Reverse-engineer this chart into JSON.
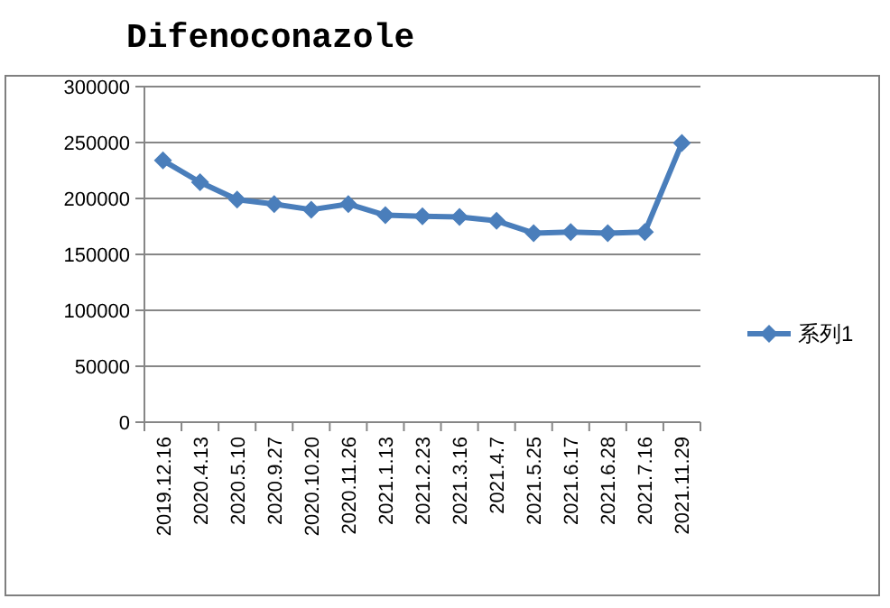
{
  "chart_data": {
    "type": "line",
    "title": "Difenoconazole",
    "categories": [
      "2019.12.16",
      "2020.4.13",
      "2020.5.10",
      "2020.9.27",
      "2020.10.20",
      "2020.11.26",
      "2021.1.13",
      "2021.2.23",
      "2021.3.16",
      "2021.4.7",
      "2021.5.25",
      "2021.6.17",
      "2021.6.28",
      "2021.7.16",
      "2021.11.29"
    ],
    "series": [
      {
        "name": "系列1",
        "color": "#4a7ebb",
        "values": [
          234000,
          214500,
          199000,
          195000,
          190000,
          195000,
          185000,
          184000,
          183500,
          180000,
          169000,
          170000,
          169000,
          170000,
          249500
        ]
      }
    ],
    "ylim": [
      0,
      300000
    ],
    "yticks": [
      0,
      50000,
      100000,
      150000,
      200000,
      250000,
      300000
    ],
    "grid": "y",
    "legend": "right",
    "marker": "diamond",
    "line_style": "solid"
  }
}
